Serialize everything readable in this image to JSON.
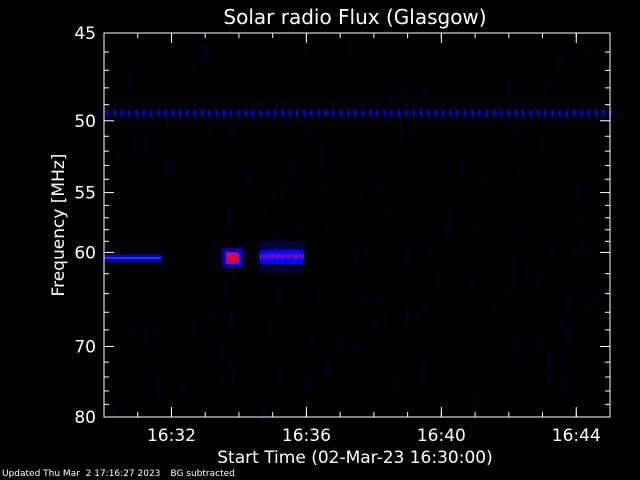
{
  "chart_data": {
    "type": "heatmap",
    "title": "Solar radio Flux (Glasgow)",
    "xlabel": "Start Time (02-Mar-23 16:30:00)",
    "ylabel": "Frequency [MHz]",
    "x_unit": "minutes since 16:30",
    "xlim": [
      "16:30",
      "16:45"
    ],
    "x_ticks": [
      {
        "label": "16:32",
        "value": "16:32"
      },
      {
        "label": "16:36",
        "value": "16:36"
      },
      {
        "label": "16:40",
        "value": "16:40"
      },
      {
        "label": "16:44",
        "value": "16:44"
      }
    ],
    "ylim": [
      45,
      80
    ],
    "y_reciprocal": true,
    "y_ticks": [
      45,
      50,
      55,
      60,
      70,
      80
    ],
    "colorscale": [
      "#000000",
      "#000060",
      "#0000ff",
      "#7f00ff",
      "#ff0000"
    ],
    "emission_features": [
      {
        "description": "continuous band",
        "t_start": "16:30",
        "t_end": "16:31.7",
        "freq": 60.5,
        "intensity": 0.55
      },
      {
        "description": "burst",
        "t_start": "16:33.6",
        "t_end": "16:34.0",
        "freq": 60.5,
        "intensity": 1.0
      },
      {
        "description": "burst",
        "t_start": "16:34.6",
        "t_end": "16:35.9",
        "freq": 60.4,
        "intensity": 0.85
      },
      {
        "description": "interference line",
        "t_start": "16:30",
        "t_end": "16:45",
        "freq": 49.5,
        "intensity": 0.4
      }
    ]
  },
  "footer": {
    "updated": "Updated Thu Mar  2 17:16:27 2023",
    "note": "BG subtracted"
  }
}
